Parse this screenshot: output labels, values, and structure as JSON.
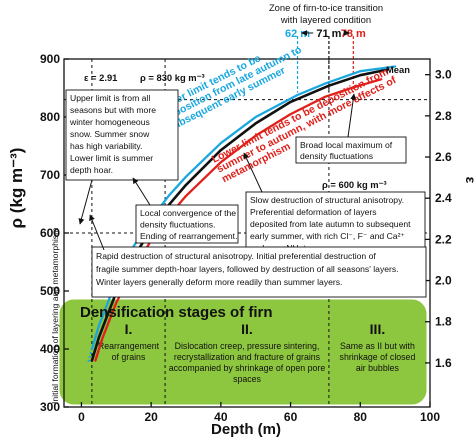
{
  "chart_data": {
    "type": "line",
    "xlabel": "Depth (m)",
    "ylabel": "ρ (kg m⁻³)",
    "ylim": [
      300,
      900
    ],
    "xlim": [
      -5,
      100
    ],
    "x_ticks": [
      0,
      20,
      40,
      60,
      80,
      100
    ],
    "y_ticks": [
      300,
      400,
      500,
      600,
      700,
      800,
      900
    ],
    "y2_ticks": [
      "1.6",
      "1.8",
      "2.0",
      "2.2",
      "2.4",
      "2.6",
      "2.8",
      "3.0"
    ],
    "y2_label": "ε",
    "top_title": [
      "Zone of firn-to-ice transition",
      "with layered condition"
    ],
    "marker_labels": [
      {
        "text": "62 m",
        "x": 62,
        "color": "#1aa7e0"
      },
      {
        "text": "71 m",
        "x": 71,
        "color": "#111111"
      },
      {
        "text": "78 m",
        "x": 78,
        "color": "#e0201b"
      }
    ],
    "series": [
      {
        "name": "Mean",
        "color": "#111111",
        "x": [
          3,
          5,
          10,
          15,
          20,
          25,
          30,
          40,
          50,
          60,
          71,
          80,
          88
        ],
        "y": [
          380,
          420,
          498,
          558,
          607,
          648,
          683,
          743,
          789,
          826,
          854,
          872,
          882
        ]
      },
      {
        "color": "#1aa7e0",
        "x": [
          3,
          5,
          10,
          15,
          20,
          25,
          30,
          40,
          50,
          62,
          70,
          80,
          90
        ],
        "y": [
          400,
          440,
          518,
          577,
          624,
          664,
          697,
          755,
          800,
          838,
          858,
          879,
          887
        ]
      },
      {
        "color": "#e0201b",
        "x": [
          4,
          6,
          10,
          15,
          20,
          25,
          30,
          40,
          50,
          60,
          70,
          78,
          86
        ],
        "y": [
          380,
          418,
          480,
          538,
          587,
          629,
          664,
          722,
          768,
          805,
          835,
          851,
          865
        ]
      }
    ],
    "threshold_lines": [
      {
        "label": "ρ = 830 kg m⁻³",
        "eps_label": "ε = 2.91",
        "y": 830
      },
      {
        "label": "ρ = 600 kg m⁻³",
        "y": 600
      }
    ],
    "annotations": [
      {
        "id": "upper-limit-curve",
        "lines": [
          "Upper limit tends to be",
          "deposition from late autumn to",
          "subsequent early summer"
        ]
      },
      {
        "id": "lower-limit-curve",
        "lines": [
          "Lower limit tends to be deposition from",
          "summer to autumn, with more effects of",
          "metamorphism"
        ]
      },
      {
        "id": "upper-limit-box",
        "lines": [
          "Upper limit is from all",
          "seasons but with more",
          "winter homogeneous",
          "snow. Summer snow",
          "has high variability.",
          "Lower limit is summer",
          "depth hoar."
        ]
      },
      {
        "id": "broad-max",
        "lines": [
          "Broad local maximum of",
          "density fluctuations"
        ]
      },
      {
        "id": "slow-destruction",
        "lines": [
          "Slow destruction of structural anisotropy.",
          "Preferential deformation of layers",
          "deposited from late autumn to subsequent",
          "early summer, with rich Cl⁻, F⁻ and Ca²⁺",
          "and poor NH₄⁺."
        ]
      },
      {
        "id": "local-convergence",
        "lines": [
          "Local convergence of the",
          "density fluctuations.",
          "Ending of rearrangement."
        ]
      },
      {
        "id": "rapid-destruction",
        "lines": [
          "Rapid destruction of structural anisotropy. Initial preferential destruction of",
          "fragile summer depth-hoar layers, followed by destruction of all seasons' layers.",
          "Winter layers generally deform more readily than summer layers."
        ]
      },
      {
        "id": "vertical-label",
        "lines": [
          "Initial formation of layering and metamorphism"
        ]
      }
    ],
    "stages": {
      "title": "Densification stages of firn",
      "items": [
        {
          "numeral": "I.",
          "desc": [
            "Rearrangement",
            "of grains"
          ]
        },
        {
          "numeral": "II.",
          "desc": [
            "Dislocation creep, pressure sintering,",
            "recrystallization and fracture of grains",
            "accompanied by shrinkage of open pore",
            "spaces"
          ]
        },
        {
          "numeral": "III.",
          "desc": [
            "Same as II but with",
            "shrinkage of closed",
            "air bubbles"
          ]
        }
      ],
      "boundaries": [
        3,
        24,
        71
      ],
      "fill": "#8dc63f"
    }
  }
}
